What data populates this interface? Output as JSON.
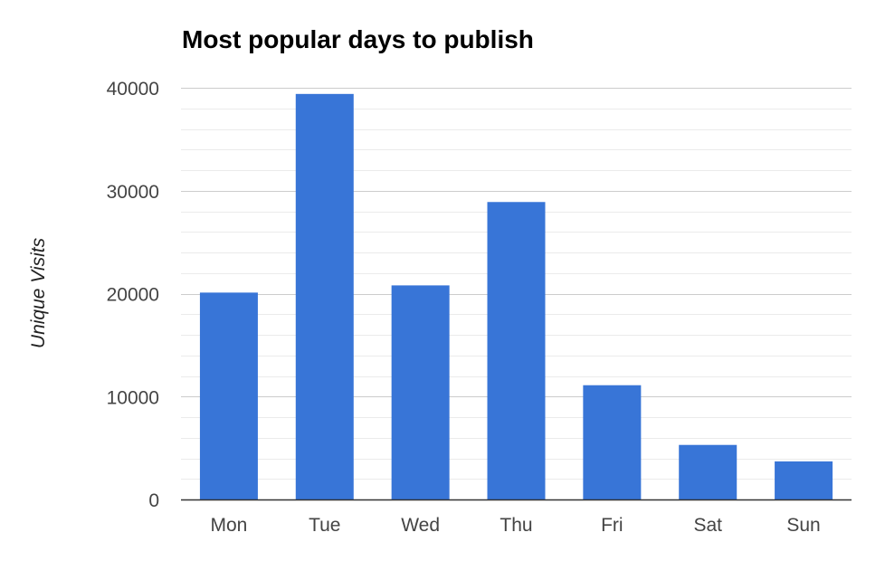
{
  "chart_data": {
    "type": "bar",
    "title": "Most popular days to publish",
    "xlabel": "",
    "ylabel": "Unique Visits",
    "categories": [
      "Mon",
      "Tue",
      "Wed",
      "Thu",
      "Fri",
      "Sat",
      "Sun"
    ],
    "values": [
      20100,
      39400,
      20800,
      28900,
      11100,
      5300,
      3700
    ],
    "ylim": [
      0,
      40000
    ],
    "yticks": [
      "0",
      "10000",
      "20000",
      "30000",
      "40000"
    ],
    "grid": true,
    "legend": "none",
    "colors": {
      "bar": "#3875d7",
      "major_grid": "#cccccc",
      "minor_grid": "#ebebeb",
      "baseline": "#333333"
    }
  }
}
